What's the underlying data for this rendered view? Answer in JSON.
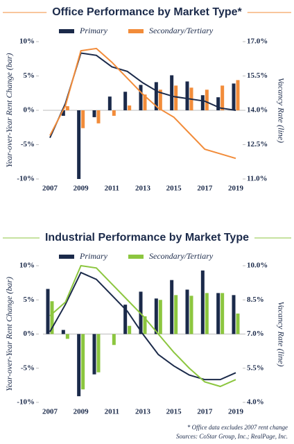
{
  "chart_data": [
    {
      "type": "combo",
      "title": "Office Performance by Market Type*",
      "title_rule_color": "#f28c3a",
      "y_label": "Year-over-Year Rent Change (bar)",
      "y2_label": "Vacancy Rate (line)",
      "categories": [
        "2007",
        null,
        "2009",
        null,
        "2011",
        null,
        "2013",
        null,
        "2015",
        null,
        "2017",
        null,
        "2019"
      ],
      "ylim": [
        -10,
        10
      ],
      "yticks": [
        {
          "value": -10,
          "label": "-10%"
        },
        {
          "value": -5,
          "label": "-5%"
        },
        {
          "value": 0,
          "label": "0%"
        },
        {
          "value": 5,
          "label": "5%"
        },
        {
          "value": 10,
          "label": "10%"
        }
      ],
      "y2lim": [
        11,
        17
      ],
      "y2ticks": [
        {
          "value": 11,
          "label": "11.0%"
        },
        {
          "value": 12.5,
          "label": "12.5%"
        },
        {
          "value": 14,
          "label": "14.0%"
        },
        {
          "value": 15.5,
          "label": "15.5%"
        },
        {
          "value": 17,
          "label": "17.0%"
        }
      ],
      "series": [
        {
          "name": "Primary",
          "color": "#1b2a4a",
          "values": [
            null,
            -0.8,
            -10,
            -1,
            2.0,
            2.7,
            3.7,
            4.1,
            5.1,
            4.2,
            2.2,
            1.9,
            3.9
          ],
          "line_values": [
            12.8,
            14.3,
            16.5,
            16.4,
            15.9,
            15.7,
            15.2,
            14.8,
            14.6,
            14.5,
            14.4,
            14.1,
            14.0
          ]
        },
        {
          "name": "Secondary/Tertiary",
          "color": "#f28c3a",
          "values": [
            null,
            0.6,
            -2.6,
            -1.9,
            -0.8,
            0.7,
            2.3,
            3.0,
            3.6,
            3.3,
            3.0,
            3.6,
            4.4
          ],
          "line_values": [
            12.9,
            14.2,
            16.6,
            16.7,
            16.1,
            15.4,
            14.7,
            14.1,
            13.7,
            13.0,
            12.3,
            12.1,
            11.9
          ]
        }
      ]
    },
    {
      "type": "combo",
      "title": "Industrial Performance by Market Type",
      "title_rule_color": "#8cc63f",
      "y_label": "Year-over-Year Rent Change (bar)",
      "y2_label": "Vacancy Rate (line)",
      "categories": [
        "2007",
        null,
        "2009",
        null,
        "2011",
        null,
        "2013",
        null,
        "2015",
        null,
        "2017",
        null,
        "2019"
      ],
      "ylim": [
        -10,
        10
      ],
      "yticks": [
        {
          "value": -10,
          "label": "-10%"
        },
        {
          "value": -5,
          "label": "-5%"
        },
        {
          "value": 0,
          "label": "0%"
        },
        {
          "value": 5,
          "label": "5%"
        },
        {
          "value": 10,
          "label": "10%"
        }
      ],
      "y2lim": [
        4,
        10
      ],
      "y2ticks": [
        {
          "value": 4,
          "label": "4.0%"
        },
        {
          "value": 5.5,
          "label": "5.5%"
        },
        {
          "value": 7,
          "label": "7.0%"
        },
        {
          "value": 8.5,
          "label": "8.5%"
        },
        {
          "value": 10,
          "label": "10.0%"
        }
      ],
      "series": [
        {
          "name": "Primary",
          "color": "#1b2a4a",
          "values": [
            6.6,
            0.6,
            -9.1,
            -5.9,
            0,
            4.3,
            6.2,
            5.2,
            7.9,
            6.5,
            9.3,
            6.0,
            5.7
          ],
          "line_values": [
            7.1,
            8.3,
            9.7,
            9.4,
            8.7,
            8.0,
            7.0,
            6.1,
            5.6,
            5.2,
            5.0,
            5.0,
            5.3
          ]
        },
        {
          "name": "Secondary/Tertiary",
          "color": "#8cc63f",
          "values": [
            4.8,
            -0.7,
            -8.1,
            -5.6,
            -1.6,
            1.2,
            2.6,
            5.0,
            5.7,
            5.6,
            6.0,
            6.0,
            3.0
          ],
          "line_values": [
            7.8,
            8.4,
            10.0,
            9.9,
            9.2,
            8.5,
            7.8,
            7.0,
            6.2,
            5.5,
            4.9,
            4.7,
            5.0
          ]
        }
      ]
    }
  ],
  "footnotes": [
    "* Office data excludes 2007 rent change",
    "Sources: CoStar Group, Inc.; RealPage, Inc."
  ]
}
